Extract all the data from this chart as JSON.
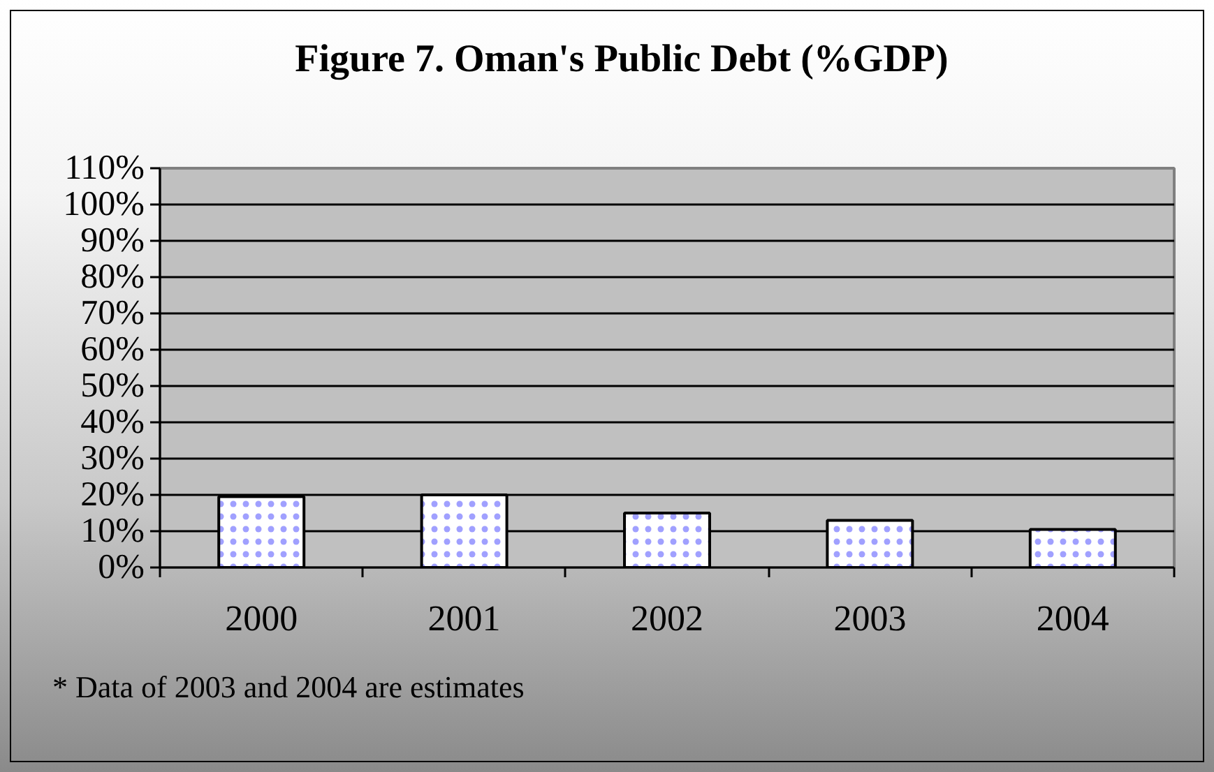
{
  "chart_data": {
    "type": "bar",
    "title": "Figure 7. Oman's Public Debt (%GDP)",
    "categories": [
      "2000",
      "2001",
      "2002",
      "2003",
      "2004"
    ],
    "values": [
      19.5,
      20,
      15,
      13,
      10.5
    ],
    "color": "#ffffff",
    "ylim": [
      0,
      110
    ],
    "yticks": [
      {
        "value": 0,
        "label": "0%"
      },
      {
        "value": 10,
        "label": "10%"
      },
      {
        "value": 20,
        "label": "20%"
      },
      {
        "value": 30,
        "label": "30%"
      },
      {
        "value": 40,
        "label": "40%"
      },
      {
        "value": 50,
        "label": "50%"
      },
      {
        "value": 60,
        "label": "60%"
      },
      {
        "value": 70,
        "label": "70%"
      },
      {
        "value": 80,
        "label": "80%"
      },
      {
        "value": 90,
        "label": "90%"
      },
      {
        "value": 100,
        "label": "100%"
      },
      {
        "value": 110,
        "label": "110%"
      }
    ],
    "grid": "y",
    "annotations": [
      "* Data of 2003 and 2004 are estimates"
    ]
  }
}
